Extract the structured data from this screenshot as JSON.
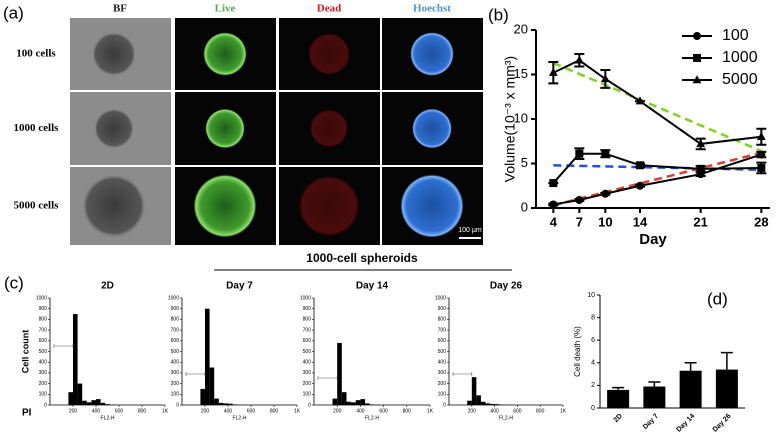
{
  "panel_a": {
    "label": "(a)",
    "columns": [
      {
        "name": "BF",
        "color": "#222222"
      },
      {
        "name": "Live",
        "color": "#4caf50"
      },
      {
        "name": "Dead",
        "color": "#d7191c"
      },
      {
        "name": "Hoechst",
        "color": "#4a90d9"
      }
    ],
    "rows": [
      "100 cells",
      "1000 cells",
      "5000 cells"
    ],
    "scale_bar": "100 μm"
  },
  "panel_c": {
    "label": "(c)",
    "title": "1000-cell spheroids",
    "corner_label": "PI"
  },
  "chart_data": [
    {
      "type": "line",
      "label": "(b)",
      "x": [
        4,
        7,
        10,
        14,
        21,
        28
      ],
      "xlabel": "Day",
      "ylabel": "Volume(10⁻³ x mm³)",
      "xlim": [
        2,
        29
      ],
      "ylim": [
        0,
        20
      ],
      "xticks": [
        4,
        7,
        10,
        14,
        21,
        28
      ],
      "yticks": [
        0,
        5,
        10,
        15,
        20
      ],
      "legend": "upper right",
      "series": [
        {
          "name": "100",
          "color": "#000000",
          "marker": "circle",
          "values": [
            0.4,
            0.9,
            1.6,
            2.5,
            3.8,
            6.0
          ],
          "errors": [
            0.1,
            0.1,
            0.1,
            0.1,
            0.2,
            0.3
          ]
        },
        {
          "name": "1000",
          "color": "#000000",
          "marker": "square",
          "values": [
            2.8,
            6.1,
            6.1,
            4.8,
            4.4,
            4.5
          ],
          "errors": [
            0,
            0.6,
            0.4,
            0.2,
            0.3,
            0.6
          ]
        },
        {
          "name": "5000",
          "color": "#000000",
          "marker": "triangle",
          "values": [
            15.2,
            16.6,
            14.5,
            12.0,
            7.2,
            8.0
          ],
          "errors": [
            1.2,
            0.7,
            1.0,
            0,
            0.6,
            0.9
          ]
        }
      ],
      "trend_lines": [
        {
          "color": "#e53935",
          "x": [
            4,
            28
          ],
          "values": [
            0.3,
            6.2
          ]
        },
        {
          "color": "#1e50e6",
          "x": [
            4,
            28
          ],
          "values": [
            4.8,
            4.3
          ]
        },
        {
          "color": "#7ed321",
          "x": [
            4,
            28
          ],
          "values": [
            16.3,
            6.4
          ]
        }
      ]
    },
    {
      "type": "histogram",
      "title": "2D",
      "ylabel": "Cell count",
      "xlabel": "FL2-H",
      "color": "#000000",
      "bins": [
        0,
        40,
        80,
        120,
        160,
        200,
        240,
        280,
        320,
        360,
        400,
        440,
        480,
        520,
        560,
        600,
        640,
        680,
        720,
        760,
        800,
        840,
        880,
        920,
        960,
        1000
      ],
      "counts": [
        0,
        0,
        0,
        0,
        120,
        850,
        200,
        40,
        25,
        45,
        55,
        20,
        8,
        3,
        2,
        1,
        0,
        0,
        0,
        0,
        0,
        0,
        0,
        0,
        0
      ],
      "xlim": [
        0,
        1000
      ],
      "ylim": [
        0,
        1000
      ],
      "xticks": [
        200,
        400,
        600,
        800,
        {
          "value": 1000,
          "label": "1K"
        }
      ],
      "yticks": [
        0,
        100,
        200,
        300,
        400,
        500,
        600,
        700,
        800,
        900,
        1000
      ]
    },
    {
      "type": "histogram",
      "title": "Day 7",
      "xlabel": "FL2-H",
      "color": "#000000",
      "bins": [
        0,
        40,
        80,
        120,
        160,
        200,
        240,
        280,
        320,
        360,
        400,
        440,
        480,
        520,
        560,
        600,
        640,
        680,
        720,
        760,
        800,
        840,
        880,
        920,
        960,
        1000
      ],
      "counts": [
        0,
        0,
        0,
        0,
        150,
        900,
        350,
        60,
        20,
        15,
        12,
        5,
        2,
        1,
        0,
        0,
        0,
        0,
        0,
        0,
        0,
        0,
        0,
        0,
        0
      ],
      "xlim": [
        0,
        1000
      ],
      "ylim": [
        0,
        1000
      ],
      "xticks": [
        200,
        400,
        600,
        800,
        {
          "value": 1000,
          "label": "1K"
        }
      ],
      "yticks": [
        0,
        100,
        200,
        300,
        400,
        500,
        600,
        700,
        800,
        900,
        1000
      ]
    },
    {
      "type": "histogram",
      "title": "Day 14",
      "xlabel": "FL2-H",
      "color": "#000000",
      "bins": [
        0,
        40,
        80,
        120,
        160,
        200,
        240,
        280,
        320,
        360,
        400,
        440,
        480,
        520,
        560,
        600,
        640,
        680,
        720,
        760,
        800,
        840,
        880,
        920,
        960,
        1000
      ],
      "counts": [
        0,
        0,
        0,
        0,
        60,
        580,
        120,
        30,
        25,
        45,
        55,
        15,
        5,
        2,
        1,
        0,
        0,
        0,
        0,
        0,
        0,
        0,
        0,
        0,
        0
      ],
      "xlim": [
        0,
        1000
      ],
      "ylim": [
        0,
        1000
      ],
      "xticks": [
        200,
        400,
        600,
        800,
        {
          "value": 1000,
          "label": "1K"
        }
      ],
      "yticks": [
        0,
        100,
        200,
        300,
        400,
        500,
        600,
        700,
        800,
        900,
        1000
      ]
    },
    {
      "type": "histogram",
      "title": "Day 26",
      "xlabel": "FL2-H",
      "color": "#000000",
      "bins": [
        0,
        40,
        80,
        120,
        160,
        200,
        240,
        280,
        320,
        360,
        400,
        440,
        480,
        520,
        560,
        600,
        640,
        680,
        720,
        760,
        800,
        840,
        880,
        920,
        960,
        1000
      ],
      "counts": [
        0,
        0,
        0,
        0,
        40,
        260,
        90,
        30,
        15,
        10,
        8,
        4,
        2,
        1,
        0,
        0,
        0,
        0,
        0,
        0,
        0,
        0,
        0,
        0,
        0
      ],
      "xlim": [
        0,
        1000
      ],
      "ylim": [
        0,
        1000
      ],
      "xticks": [
        200,
        400,
        600,
        800,
        {
          "value": 1000,
          "label": "1K"
        }
      ],
      "yticks": [
        0,
        100,
        200,
        300,
        400,
        500,
        600,
        700,
        800,
        900,
        1000
      ]
    },
    {
      "type": "bar",
      "label": "(d)",
      "categories": [
        "2D",
        "Day 7",
        "Day 14",
        "Day 26"
      ],
      "values": [
        1.6,
        1.9,
        3.3,
        3.4
      ],
      "errors": [
        0.2,
        0.4,
        0.7,
        1.5
      ],
      "ylabel": "Cell death (%)",
      "ylim": [
        0,
        10
      ],
      "yticks": [
        0,
        2,
        4,
        6,
        8,
        10
      ],
      "color": "#000000"
    }
  ]
}
